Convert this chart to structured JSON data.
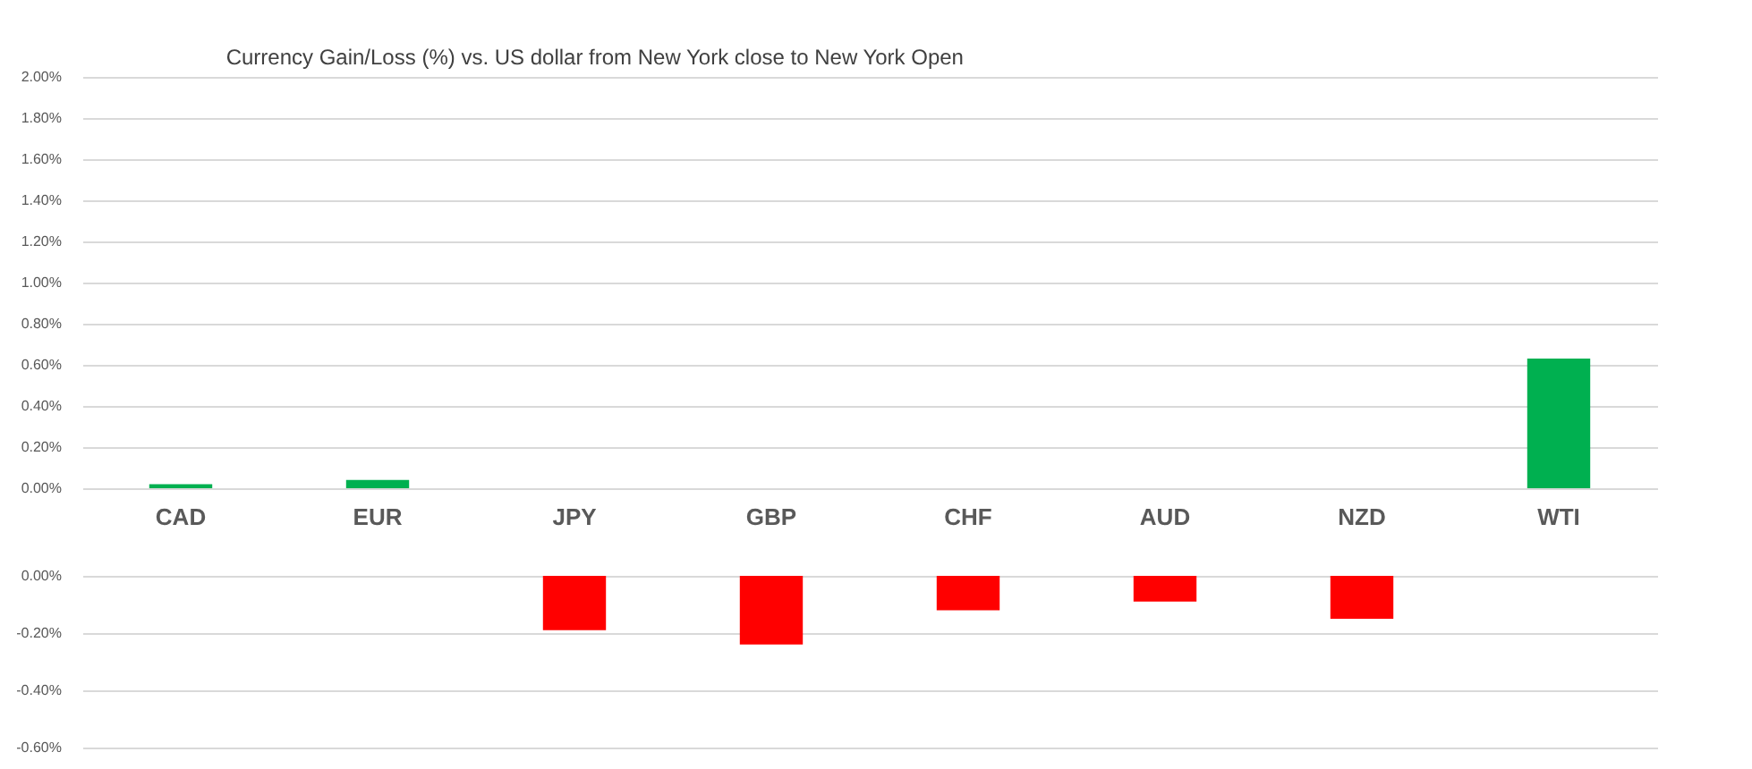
{
  "chart_data": [
    {
      "type": "bar",
      "title": "Currency  Gain/Loss (%) vs. US dollar  from New York close to  New York Open",
      "categories": [
        "CAD",
        "EUR",
        "JPY",
        "GBP",
        "CHF",
        "AUD",
        "NZD",
        "WTI"
      ],
      "series": [
        {
          "color": "#00b050",
          "values": [
            0.02,
            0.04,
            null,
            null,
            null,
            null,
            null,
            0.63
          ]
        }
      ],
      "ylim": [
        0,
        2
      ],
      "yticks": [
        {
          "value": 0,
          "label": "0.00%"
        },
        {
          "value": 0.2,
          "label": "0.20%"
        },
        {
          "value": 0.4,
          "label": "0.40%"
        },
        {
          "value": 0.6,
          "label": "0.60%"
        },
        {
          "value": 0.8,
          "label": "0.80%"
        },
        {
          "value": 1,
          "label": "1.00%"
        },
        {
          "value": 1.2,
          "label": "1.20%"
        },
        {
          "value": 1.4,
          "label": "1.40%"
        },
        {
          "value": 1.6,
          "label": "1.60%"
        },
        {
          "value": 1.8,
          "label": "1.80%"
        },
        {
          "value": 2,
          "label": "2.00%"
        }
      ],
      "grid": "y",
      "legend": false
    },
    {
      "type": "bar",
      "categories": [
        null,
        null,
        null,
        null,
        null,
        null,
        null,
        null
      ],
      "series": [
        {
          "color": "#ff0000",
          "values": [
            null,
            null,
            -0.19,
            -0.24,
            -0.12,
            -0.09,
            -0.15,
            null
          ]
        }
      ],
      "ylim": [
        -0.6,
        0
      ],
      "yticks": [
        {
          "value": -0.6,
          "label": "-0.60%"
        },
        {
          "value": -0.4,
          "label": "-0.40%"
        },
        {
          "value": -0.2,
          "label": "-0.20%"
        },
        {
          "value": 0,
          "label": "0.00%"
        }
      ],
      "grid": "y",
      "legend": false
    }
  ]
}
